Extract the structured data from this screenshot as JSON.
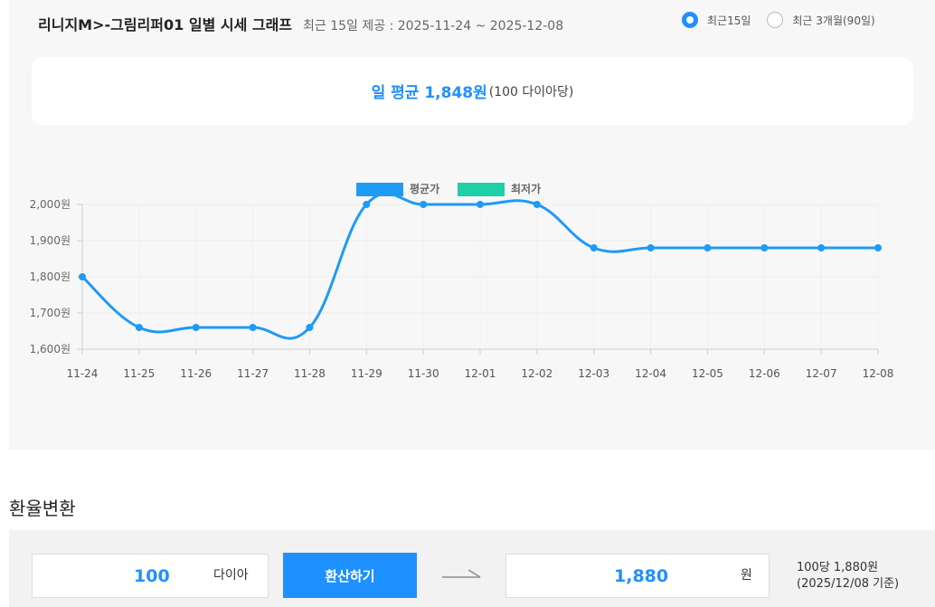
{
  "header": {
    "title": "리니지M>-그림리퍼01 일별 시세 그래프",
    "subtitle": "최근 15일 제공 : 2025-11-24 ~ 2025-12-08"
  },
  "period_options": [
    {
      "label": "최근15일",
      "checked": true
    },
    {
      "label": "최근 3개월(90일)",
      "checked": false
    }
  ],
  "average": {
    "label": "일 평균 1,848원",
    "unit": "(100 다이아당)"
  },
  "chart_data": {
    "type": "line",
    "categories": [
      "11-24",
      "11-25",
      "11-26",
      "11-27",
      "11-28",
      "11-29",
      "11-30",
      "12-01",
      "12-02",
      "12-03",
      "12-04",
      "12-05",
      "12-06",
      "12-07",
      "12-08"
    ],
    "series": [
      {
        "name": "평균가",
        "color": "#1e9bf5",
        "values": [
          1800,
          1660,
          1660,
          1660,
          1660,
          2000,
          2000,
          2000,
          2000,
          1880,
          1880,
          1880,
          1880,
          1880,
          1880
        ]
      }
    ],
    "legend": [
      {
        "name": "평균가",
        "color": "#1e9bf5"
      },
      {
        "name": "최저가",
        "color": "#1fcfa6"
      }
    ],
    "yticks": [
      1600,
      1700,
      1800,
      1900,
      2000
    ],
    "ytick_labels": [
      "1,600원",
      "1,700원",
      "1,800원",
      "1,900원",
      "2,000원"
    ],
    "ylim": [
      1600,
      2000
    ],
    "legend_position": "top-center",
    "grid": true
  },
  "converter": {
    "section_title": "환율변환",
    "input_value": "100",
    "input_unit": "다이아",
    "button_label": "환산하기",
    "result_value": "1,880",
    "result_unit": "원",
    "note_line1": "100당 1,880원",
    "note_line2": "(2025/12/08 기준)"
  }
}
